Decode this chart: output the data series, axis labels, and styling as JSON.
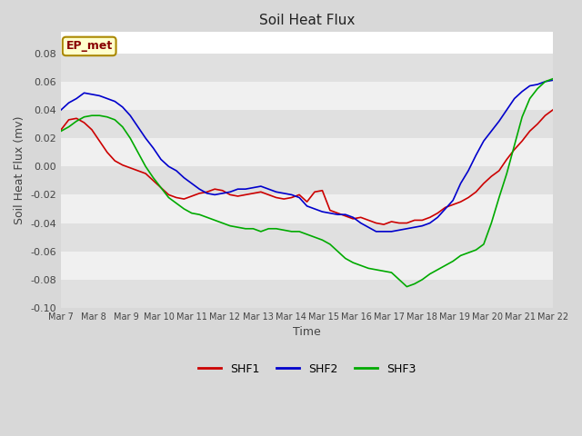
{
  "title": "Soil Heat Flux",
  "xlabel": "Time",
  "ylabel": "Soil Heat Flux (mv)",
  "ylim": [
    -0.1,
    0.095
  ],
  "yticks": [
    -0.1,
    -0.08,
    -0.06,
    -0.04,
    -0.02,
    0.0,
    0.02,
    0.04,
    0.06,
    0.08
  ],
  "xtick_labels": [
    "Mar 7",
    "Mar 8",
    "Mar 9",
    "Mar 10",
    "Mar 11",
    "Mar 12",
    "Mar 13",
    "Mar 14",
    "Mar 15",
    "Mar 16",
    "Mar 17",
    "Mar 18",
    "Mar 19",
    "Mar 20",
    "Mar 21",
    "Mar 22"
  ],
  "fig_bg_color": "#d8d8d8",
  "plot_bg_color": "#ffffff",
  "band_color_light": "#f0f0f0",
  "band_color_dark": "#e0e0e0",
  "annotation_text": "EP_met",
  "annotation_bg": "#ffffcc",
  "annotation_border": "#aa8800",
  "annotation_text_color": "#880000",
  "line_colors": {
    "SHF1": "#cc0000",
    "SHF2": "#0000cc",
    "SHF3": "#00aa00"
  },
  "line_width": 1.2,
  "shf1": [
    0.026,
    0.033,
    0.034,
    0.031,
    0.026,
    0.018,
    0.01,
    0.004,
    0.001,
    -0.001,
    -0.003,
    -0.005,
    -0.01,
    -0.015,
    -0.02,
    -0.022,
    -0.023,
    -0.021,
    -0.019,
    -0.018,
    -0.016,
    -0.017,
    -0.02,
    -0.021,
    -0.02,
    -0.019,
    -0.018,
    -0.02,
    -0.022,
    -0.023,
    -0.022,
    -0.02,
    -0.025,
    -0.018,
    -0.017,
    -0.031,
    -0.033,
    -0.035,
    -0.037,
    -0.036,
    -0.038,
    -0.04,
    -0.041,
    -0.039,
    -0.04,
    -0.04,
    -0.038,
    -0.038,
    -0.036,
    -0.033,
    -0.029,
    -0.027,
    -0.025,
    -0.022,
    -0.018,
    -0.012,
    -0.007,
    -0.003,
    0.005,
    0.012,
    0.018,
    0.025,
    0.03,
    0.036,
    0.04
  ],
  "shf2": [
    0.04,
    0.045,
    0.048,
    0.052,
    0.051,
    0.05,
    0.048,
    0.046,
    0.042,
    0.036,
    0.028,
    0.02,
    0.013,
    0.005,
    0.0,
    -0.003,
    -0.008,
    -0.012,
    -0.016,
    -0.019,
    -0.02,
    -0.019,
    -0.018,
    -0.016,
    -0.016,
    -0.015,
    -0.014,
    -0.016,
    -0.018,
    -0.019,
    -0.02,
    -0.022,
    -0.028,
    -0.03,
    -0.032,
    -0.033,
    -0.034,
    -0.034,
    -0.036,
    -0.04,
    -0.043,
    -0.046,
    -0.046,
    -0.046,
    -0.045,
    -0.044,
    -0.043,
    -0.042,
    -0.04,
    -0.036,
    -0.03,
    -0.024,
    -0.012,
    -0.003,
    0.008,
    0.018,
    0.025,
    0.032,
    0.04,
    0.048,
    0.053,
    0.057,
    0.058,
    0.06,
    0.061
  ],
  "shf3": [
    0.025,
    0.028,
    0.032,
    0.035,
    0.036,
    0.036,
    0.035,
    0.033,
    0.028,
    0.02,
    0.01,
    0.0,
    -0.008,
    -0.015,
    -0.022,
    -0.026,
    -0.03,
    -0.033,
    -0.034,
    -0.036,
    -0.038,
    -0.04,
    -0.042,
    -0.043,
    -0.044,
    -0.044,
    -0.046,
    -0.044,
    -0.044,
    -0.045,
    -0.046,
    -0.046,
    -0.048,
    -0.05,
    -0.052,
    -0.055,
    -0.06,
    -0.065,
    -0.068,
    -0.07,
    -0.072,
    -0.073,
    -0.074,
    -0.075,
    -0.08,
    -0.085,
    -0.083,
    -0.08,
    -0.076,
    -0.073,
    -0.07,
    -0.067,
    -0.063,
    -0.061,
    -0.059,
    -0.055,
    -0.04,
    -0.022,
    -0.005,
    0.015,
    0.035,
    0.048,
    0.055,
    0.06,
    0.062
  ]
}
